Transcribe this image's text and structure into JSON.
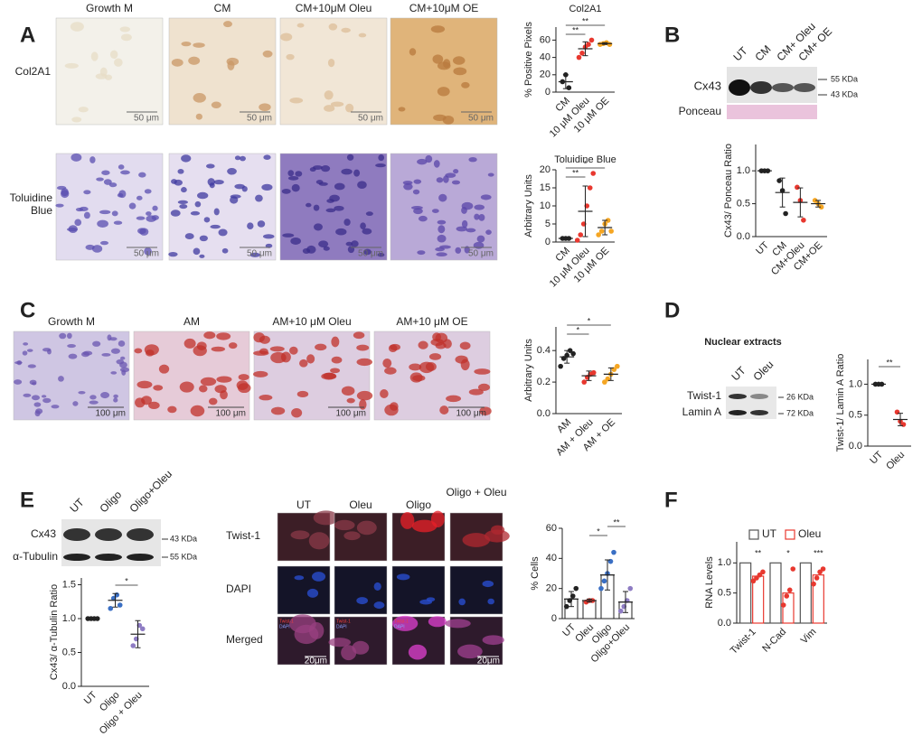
{
  "panel_a": {
    "letter": "A",
    "columns": [
      "Growth M",
      "CM",
      "CM+10μM  Oleu",
      "CM+10μM OE"
    ],
    "rows": [
      "Col2A1",
      "Toluidine Blue"
    ],
    "scale_bars": [
      "50 μm",
      "50 μm",
      "50 μm",
      "50 μm",
      "50 μm",
      "50 μm",
      "50 μm",
      "50 μm"
    ]
  },
  "panel_b": {
    "letter": "B",
    "lanes": [
      "UT",
      "CM",
      "CM+ Oleu",
      "CM+ OE"
    ],
    "blot_labels": [
      "Cx43",
      "Ponceau"
    ],
    "markers": [
      "55 KDa",
      "43 KDa"
    ]
  },
  "panel_c": {
    "letter": "C",
    "columns": [
      "Growth M",
      "AM",
      "AM+10 μM Oleu",
      "AM+10 μM OE"
    ],
    "scale_bars": [
      "100 μm",
      "100 μm",
      "100 μm",
      "100 μm"
    ]
  },
  "panel_d": {
    "letter": "D",
    "heading": "Nuclear extracts",
    "lanes": [
      "UT",
      "Oleu"
    ],
    "blot_labels": [
      "Twist-1",
      "Lamin A"
    ],
    "markers": [
      "26 KDa",
      "72 KDa"
    ]
  },
  "panel_e": {
    "letter": "E",
    "lanes": [
      "UT",
      "Oligo",
      "Oligo+Oleu"
    ],
    "blot_labels": [
      "Cx43",
      "α-Tubulin"
    ],
    "markers": [
      "43 KDa",
      "55 KDa"
    ],
    "columns": [
      "UT",
      "Oleu",
      "Oligo",
      "Oligo + Oleu"
    ],
    "rows": [
      "Twist-1",
      "DAPI",
      "Merged"
    ],
    "merged_insets": [
      [
        "Twist-1",
        "DAPI"
      ],
      [
        "Twist-1",
        "DAPI"
      ],
      [
        "Twist-1",
        "DAPI"
      ]
    ],
    "scale_bars": [
      "20μm",
      "20μm"
    ]
  },
  "panel_f": {
    "letter": "F"
  },
  "chart_data": [
    {
      "type": "dot",
      "title": "Col2A1",
      "ylabel": "% Positive Pixels",
      "categories": [
        "CM",
        "10 μM Oleu",
        "10 μM OE"
      ],
      "groups": [
        {
          "color": "#222222",
          "points": [
            12,
            20,
            5
          ],
          "mean": 12,
          "sd": 8
        },
        {
          "color": "#e8382f",
          "points": [
            40,
            45,
            52,
            55,
            60
          ],
          "mean": 50,
          "sd": 8
        },
        {
          "color": "#f5a623",
          "points": [
            55,
            56,
            57,
            55
          ],
          "mean": 56,
          "sd": 1
        }
      ],
      "ylim": [
        0,
        75
      ],
      "yticks": [
        0,
        20,
        40,
        60
      ],
      "significance": [
        {
          "between": [
            "CM",
            "10 μM Oleu"
          ],
          "label": "**"
        },
        {
          "between": [
            "CM",
            "10 μM OE"
          ],
          "label": "**"
        }
      ]
    },
    {
      "type": "dot",
      "title": "Toluidine Blue",
      "ylabel": "Arbitrary Units",
      "categories": [
        "CM",
        "10 μM Oleu",
        "10 μM OE"
      ],
      "groups": [
        {
          "color": "#222222",
          "points": [
            1,
            1,
            1
          ],
          "mean": 1,
          "sd": 0.2
        },
        {
          "color": "#e8382f",
          "points": [
            0.5,
            2,
            5,
            10,
            15,
            19
          ],
          "mean": 8.5,
          "sd": 7
        },
        {
          "color": "#f5a623",
          "points": [
            2,
            3,
            5,
            6,
            3
          ],
          "mean": 4,
          "sd": 2
        }
      ],
      "ylim": [
        0,
        20
      ],
      "yticks": [
        0,
        5,
        10,
        15,
        20
      ],
      "significance": [
        {
          "between": [
            "CM",
            "10 μM Oleu"
          ],
          "label": "**"
        },
        {
          "between": [
            "CM",
            "10 μM OE"
          ],
          "label": "*"
        }
      ]
    },
    {
      "type": "dot",
      "ylabel": "Cx43/ Ponceau Ratio",
      "categories": [
        "UT",
        "CM",
        "CM+Oleu",
        "CM+OE"
      ],
      "groups": [
        {
          "color": "#222222",
          "points": [
            1,
            1,
            1
          ],
          "mean": 1,
          "sd": 0.01
        },
        {
          "color": "#222222",
          "points": [
            0.85,
            0.7,
            0.35
          ],
          "mean": 0.67,
          "sd": 0.22
        },
        {
          "color": "#e8382f",
          "points": [
            0.75,
            0.55,
            0.25
          ],
          "mean": 0.52,
          "sd": 0.22
        },
        {
          "color": "#f5a623",
          "points": [
            0.55,
            0.5,
            0.45
          ],
          "mean": 0.5,
          "sd": 0.05
        }
      ],
      "ylim": [
        0,
        1.4
      ],
      "yticks": [
        {
          "value": 0,
          "label": "0.0"
        },
        {
          "value": 0.5,
          "label": "0.5"
        },
        {
          "value": 1,
          "label": "1.0"
        }
      ]
    },
    {
      "type": "dot",
      "ylabel": "Arbitrary Units",
      "categories": [
        "AM",
        "AM + Oleu",
        "AM + OE"
      ],
      "groups": [
        {
          "color": "#222222",
          "points": [
            0.3,
            0.35,
            0.37,
            0.4,
            0.38
          ],
          "mean": 0.36,
          "sd": 0.04
        },
        {
          "color": "#e8382f",
          "points": [
            0.2,
            0.23,
            0.25,
            0.26
          ],
          "mean": 0.24,
          "sd": 0.03
        },
        {
          "color": "#f5a623",
          "points": [
            0.2,
            0.22,
            0.25,
            0.28,
            0.3
          ],
          "mean": 0.25,
          "sd": 0.04
        }
      ],
      "ylim": [
        0,
        0.55
      ],
      "yticks": [
        {
          "value": 0,
          "label": "0.0"
        },
        {
          "value": 0.2,
          "label": "0.2"
        },
        {
          "value": 0.4,
          "label": "0.4"
        }
      ],
      "significance": [
        {
          "between": [
            "AM",
            "AM + Oleu"
          ],
          "label": "*"
        },
        {
          "between": [
            "AM",
            "AM + OE"
          ],
          "label": "*"
        }
      ]
    },
    {
      "type": "dot",
      "ylabel": "Twist-1/ Lamin A Ratio",
      "categories": [
        "UT",
        "Oleu"
      ],
      "groups": [
        {
          "color": "#222222",
          "points": [
            1,
            1,
            1
          ],
          "mean": 1,
          "sd": 0.01
        },
        {
          "color": "#e8382f",
          "points": [
            0.55,
            0.4,
            0.35
          ],
          "mean": 0.43,
          "sd": 0.1
        }
      ],
      "ylim": [
        0,
        1.4
      ],
      "yticks": [
        {
          "value": 0,
          "label": "0.0"
        },
        {
          "value": 0.5,
          "label": "0.5"
        },
        {
          "value": 1,
          "label": "1.0"
        }
      ],
      "significance": [
        {
          "between": [
            "UT",
            "Oleu"
          ],
          "label": "**"
        }
      ]
    },
    {
      "type": "dot",
      "ylabel": "Cx43/ α-Tubulin Ratio",
      "categories": [
        "UT",
        "Oligo",
        "Oligo + Oleu"
      ],
      "groups": [
        {
          "color": "#222222",
          "points": [
            1,
            1,
            1,
            1
          ],
          "mean": 1,
          "sd": 0.01
        },
        {
          "color": "#3a6fc4",
          "points": [
            1.15,
            1.3,
            1.35,
            1.2
          ],
          "mean": 1.27,
          "sd": 0.1
        },
        {
          "color": "#8e7cc3",
          "points": [
            0.6,
            0.7,
            0.9,
            0.85
          ],
          "mean": 0.77,
          "sd": 0.2
        }
      ],
      "ylim": [
        0,
        1.6
      ],
      "yticks": [
        {
          "value": 0,
          "label": "0.0"
        },
        {
          "value": 0.5,
          "label": "0.5"
        },
        {
          "value": 1,
          "label": "1.0"
        },
        {
          "value": 1.5,
          "label": "1.5"
        }
      ],
      "significance": [
        {
          "between": [
            "Oligo",
            "Oligo + Oleu"
          ],
          "label": "*"
        }
      ]
    },
    {
      "type": "bar",
      "ylabel": "% Cells",
      "categories": [
        "UT",
        "Oleu",
        "Oligo",
        "Oligo+Oleu"
      ],
      "groups": [
        {
          "color": "#222222",
          "points": [
            8,
            12,
            15,
            20
          ],
          "mean": 13,
          "sd": 5
        },
        {
          "color": "#e8382f",
          "points": [
            11,
            12,
            12
          ],
          "mean": 12,
          "sd": 1
        },
        {
          "color": "#3a6fc4",
          "points": [
            20,
            25,
            30,
            38,
            44
          ],
          "mean": 29,
          "sd": 10
        },
        {
          "color": "#8e7cc3",
          "points": [
            5,
            8,
            12,
            20
          ],
          "mean": 11,
          "sd": 7
        }
      ],
      "ylim": [
        0,
        60
      ],
      "yticks": [
        0,
        20,
        40,
        60
      ],
      "significance": [
        {
          "between": [
            "Oleu",
            "Oligo"
          ],
          "label": "*"
        },
        {
          "between": [
            "Oligo",
            "Oligo+Oleu"
          ],
          "label": "**"
        }
      ]
    },
    {
      "type": "grouped-bar",
      "ylabel": "RNA Levels",
      "categories": [
        "Twist-1",
        "N-Cad",
        "Vim"
      ],
      "series": [
        {
          "name": "UT",
          "color": "#555555",
          "values": [
            1,
            1,
            1
          ]
        },
        {
          "name": "Oleu",
          "color": "#e8382f",
          "values": [
            0.78,
            0.5,
            0.8
          ],
          "points": [
            [
              0.7,
              0.75,
              0.8,
              0.85
            ],
            [
              0.3,
              0.45,
              0.55,
              0.9
            ],
            [
              0.65,
              0.75,
              0.85,
              0.9
            ]
          ]
        }
      ],
      "annotations": [
        "**",
        "*",
        "***"
      ],
      "ylim": [
        0,
        1.35
      ],
      "yticks": [
        {
          "value": 0,
          "label": "0.0"
        },
        {
          "value": 0.5,
          "label": "0.5"
        },
        {
          "value": 1,
          "label": "1.0"
        }
      ]
    }
  ]
}
